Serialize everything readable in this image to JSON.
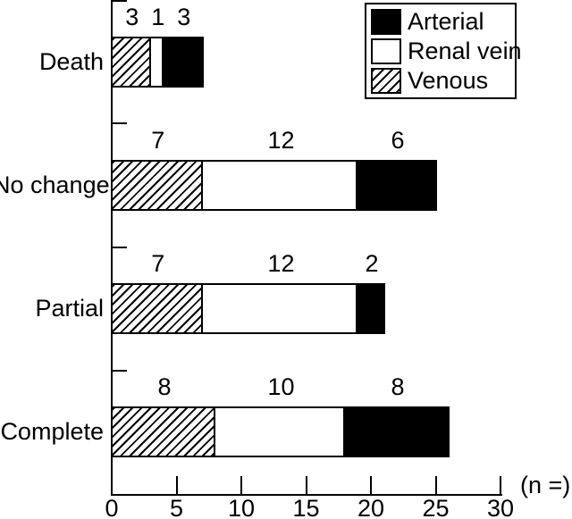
{
  "figure": {
    "background": "#ffffff",
    "foreground": "#000000"
  },
  "chart_data": {
    "type": "bar",
    "orientation": "horizontal",
    "stacked": true,
    "title": "",
    "categories": [
      "Death",
      "No change",
      "Partial",
      "Complete"
    ],
    "series": [
      {
        "name": "Venous",
        "fill": "hatch",
        "values": [
          3,
          7,
          7,
          8
        ]
      },
      {
        "name": "Renal vein",
        "fill": "white",
        "values": [
          1,
          12,
          12,
          10
        ]
      },
      {
        "name": "Arterial",
        "fill": "black",
        "values": [
          3,
          6,
          2,
          8
        ]
      }
    ],
    "bar_totals": [
      7,
      25,
      21,
      26
    ],
    "value_labels_shown": true,
    "xlabel": "(n =)",
    "ylabel": "",
    "xlim": [
      0,
      30
    ],
    "x_ticks": [
      "0",
      "5",
      "10",
      "15",
      "20",
      "25",
      "30"
    ],
    "grid": false,
    "legend": {
      "position": "top-right",
      "items": [
        {
          "label": "Arterial",
          "fill": "black"
        },
        {
          "label": "Renal vein",
          "fill": "white"
        },
        {
          "label": "Venous",
          "fill": "hatch"
        }
      ]
    }
  }
}
